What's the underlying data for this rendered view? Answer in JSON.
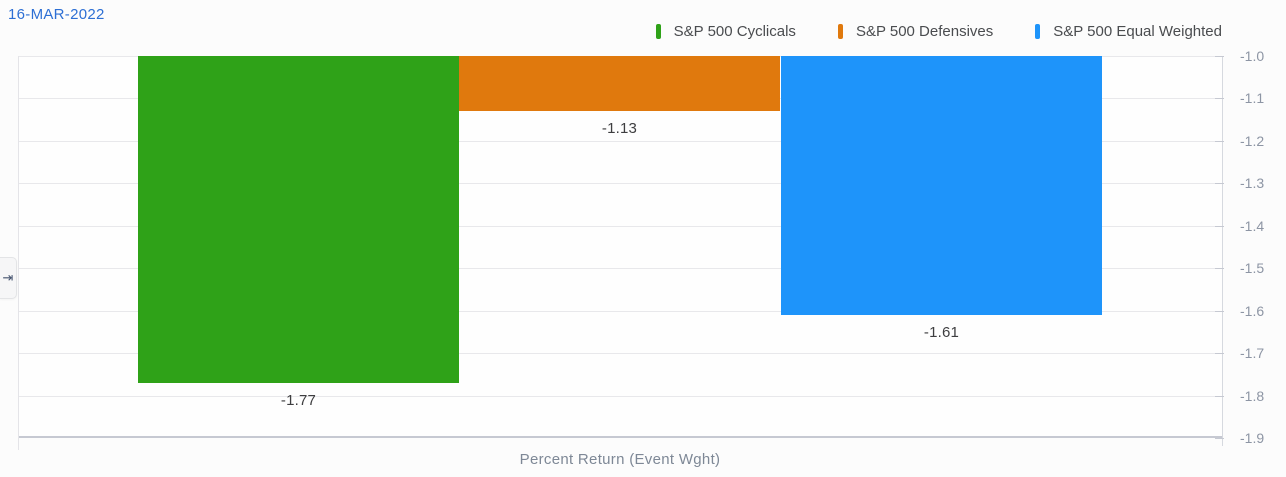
{
  "header": {
    "date": "16-MAR-2022"
  },
  "legend": [
    {
      "label": "S&P 500 Cyclicals",
      "color": "#2fa218"
    },
    {
      "label": "S&P 500 Defensives",
      "color": "#e0790d"
    },
    {
      "label": "S&P 500 Equal Weighted",
      "color": "#1e94fa"
    }
  ],
  "chart_data": {
    "type": "bar",
    "title": "16-MAR-2022",
    "categories": [
      "16-MAR-2022"
    ],
    "series": [
      {
        "name": "S&P 500 Cyclicals",
        "values": [
          -1.77
        ],
        "data_label": "-1.77",
        "color": "#2fa218"
      },
      {
        "name": "S&P 500 Defensives",
        "values": [
          -1.13
        ],
        "data_label": "-1.13",
        "color": "#e0790d"
      },
      {
        "name": "S&P 500 Equal Weighted",
        "values": [
          -1.61
        ],
        "data_label": "-1.61",
        "color": "#1e94fa"
      }
    ],
    "xlabel": "Percent Return (Event Wght)",
    "ylabel": "",
    "y_axis": {
      "side": "right",
      "max": -1.0,
      "min": -1.9,
      "ticks": [
        "-1.0",
        "-1.1",
        "-1.2",
        "-1.3",
        "-1.4",
        "-1.5",
        "-1.6",
        "-1.7",
        "-1.8",
        "-1.9"
      ]
    },
    "grid": true,
    "legend_position": "top-right",
    "bars_hang_from_top": true
  },
  "icons": {
    "collapse_glyph": "⇥",
    "collapse_name": "collapse-panel-icon"
  },
  "colors": {
    "background": "#fcfcfc",
    "gridline": "#e8e8eb",
    "axis": "#c6c9d2",
    "tick_label": "#8d95a4",
    "value_label": "#3e3e40",
    "date": "#2d6fd4"
  }
}
